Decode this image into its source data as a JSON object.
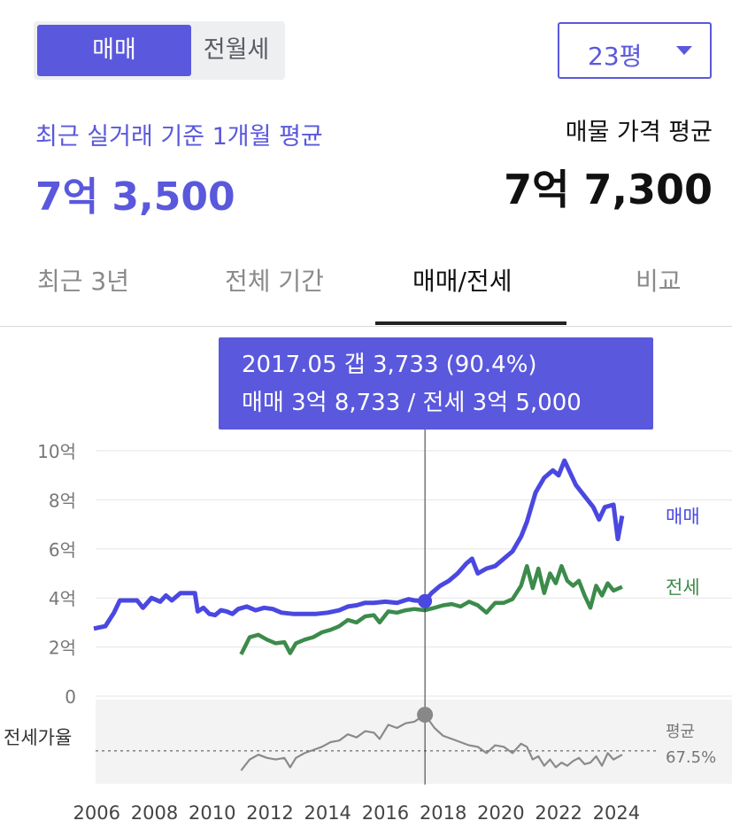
{
  "toggle": {
    "active_label": "매매",
    "inactive_label": "전월세"
  },
  "area_select": {
    "value": "23평"
  },
  "summary": {
    "recent_label": "최근 실거래 기준 1개월 평균",
    "recent_value": "7억 3,500",
    "listing_label": "매물 가격 평균",
    "listing_value": "7억 7,300"
  },
  "tabs": [
    {
      "label": "최근 3년"
    },
    {
      "label": "전체 기간"
    },
    {
      "label": "매매/전세"
    },
    {
      "label": "비교"
    }
  ],
  "colors": {
    "accent": "#5a58dc",
    "sale": "#4a48e0",
    "jeonse": "#3c8b4b",
    "ratio": "#8a8a8a"
  },
  "tooltip": {
    "line1": "2017.05  갭 3,733 (90.4%)",
    "line2": "매매 3억 8,733 / 전세 3억 5,000"
  },
  "chart_data": {
    "type": "line",
    "x_ticks": [
      "2006",
      "2008",
      "2010",
      "2012",
      "2014",
      "2016",
      "2018",
      "2020",
      "2022",
      "2024"
    ],
    "y_ticks": [
      "10억",
      "8억",
      "6억",
      "4억",
      "2억",
      "0"
    ],
    "ylim": [
      0,
      10
    ],
    "xlim": [
      2005.9,
      2025.0
    ],
    "grid": true,
    "cursor_x": 2017.37,
    "series": [
      {
        "name": "매매",
        "color": "#4a48e0",
        "points": [
          [
            2005.9,
            2.75
          ],
          [
            2006.3,
            2.85
          ],
          [
            2006.6,
            3.4
          ],
          [
            2006.8,
            3.9
          ],
          [
            2007.1,
            3.9
          ],
          [
            2007.4,
            3.9
          ],
          [
            2007.6,
            3.6
          ],
          [
            2007.9,
            4.0
          ],
          [
            2008.2,
            3.85
          ],
          [
            2008.4,
            4.1
          ],
          [
            2008.6,
            3.9
          ],
          [
            2008.9,
            4.2
          ],
          [
            2009.1,
            4.2
          ],
          [
            2009.4,
            4.2
          ],
          [
            2009.5,
            3.45
          ],
          [
            2009.7,
            3.6
          ],
          [
            2009.9,
            3.35
          ],
          [
            2010.1,
            3.3
          ],
          [
            2010.3,
            3.5
          ],
          [
            2010.5,
            3.45
          ],
          [
            2010.7,
            3.35
          ],
          [
            2010.9,
            3.55
          ],
          [
            2011.2,
            3.65
          ],
          [
            2011.5,
            3.5
          ],
          [
            2011.8,
            3.6
          ],
          [
            2012.1,
            3.55
          ],
          [
            2012.4,
            3.4
          ],
          [
            2012.8,
            3.35
          ],
          [
            2013.2,
            3.35
          ],
          [
            2013.6,
            3.35
          ],
          [
            2014.0,
            3.4
          ],
          [
            2014.4,
            3.5
          ],
          [
            2014.7,
            3.65
          ],
          [
            2015.0,
            3.7
          ],
          [
            2015.3,
            3.8
          ],
          [
            2015.6,
            3.8
          ],
          [
            2016.0,
            3.85
          ],
          [
            2016.4,
            3.8
          ],
          [
            2016.8,
            3.95
          ],
          [
            2017.0,
            3.9
          ],
          [
            2017.37,
            3.87
          ],
          [
            2017.6,
            4.2
          ],
          [
            2017.9,
            4.5
          ],
          [
            2018.2,
            4.7
          ],
          [
            2018.5,
            5.0
          ],
          [
            2018.8,
            5.4
          ],
          [
            2019.0,
            5.6
          ],
          [
            2019.2,
            5.0
          ],
          [
            2019.5,
            5.2
          ],
          [
            2019.8,
            5.3
          ],
          [
            2020.1,
            5.6
          ],
          [
            2020.4,
            5.9
          ],
          [
            2020.7,
            6.5
          ],
          [
            2020.9,
            7.1
          ],
          [
            2021.2,
            8.3
          ],
          [
            2021.5,
            8.9
          ],
          [
            2021.8,
            9.2
          ],
          [
            2022.0,
            9.0
          ],
          [
            2022.2,
            9.6
          ],
          [
            2022.4,
            9.1
          ],
          [
            2022.6,
            8.6
          ],
          [
            2022.8,
            8.3
          ],
          [
            2023.0,
            8.0
          ],
          [
            2023.2,
            7.7
          ],
          [
            2023.4,
            7.2
          ],
          [
            2023.6,
            7.7
          ],
          [
            2023.9,
            7.8
          ],
          [
            2024.05,
            6.4
          ],
          [
            2024.2,
            7.35
          ]
        ]
      },
      {
        "name": "전세",
        "color": "#3c8b4b",
        "points": [
          [
            2011.0,
            1.7
          ],
          [
            2011.3,
            2.4
          ],
          [
            2011.6,
            2.5
          ],
          [
            2011.9,
            2.3
          ],
          [
            2012.2,
            2.15
          ],
          [
            2012.5,
            2.2
          ],
          [
            2012.7,
            1.75
          ],
          [
            2012.9,
            2.15
          ],
          [
            2013.2,
            2.3
          ],
          [
            2013.5,
            2.4
          ],
          [
            2013.8,
            2.6
          ],
          [
            2014.1,
            2.7
          ],
          [
            2014.4,
            2.85
          ],
          [
            2014.7,
            3.1
          ],
          [
            2015.0,
            3.0
          ],
          [
            2015.3,
            3.25
          ],
          [
            2015.6,
            3.3
          ],
          [
            2015.8,
            3.0
          ],
          [
            2016.1,
            3.45
          ],
          [
            2016.4,
            3.4
          ],
          [
            2016.7,
            3.5
          ],
          [
            2017.0,
            3.55
          ],
          [
            2017.37,
            3.5
          ],
          [
            2017.7,
            3.6
          ],
          [
            2018.0,
            3.7
          ],
          [
            2018.3,
            3.75
          ],
          [
            2018.6,
            3.65
          ],
          [
            2018.9,
            3.85
          ],
          [
            2019.2,
            3.7
          ],
          [
            2019.5,
            3.4
          ],
          [
            2019.8,
            3.8
          ],
          [
            2020.1,
            3.8
          ],
          [
            2020.4,
            3.95
          ],
          [
            2020.7,
            4.5
          ],
          [
            2020.9,
            5.3
          ],
          [
            2021.1,
            4.4
          ],
          [
            2021.3,
            5.2
          ],
          [
            2021.5,
            4.2
          ],
          [
            2021.7,
            5.0
          ],
          [
            2021.9,
            4.6
          ],
          [
            2022.1,
            5.3
          ],
          [
            2022.3,
            4.7
          ],
          [
            2022.5,
            4.5
          ],
          [
            2022.7,
            4.7
          ],
          [
            2022.9,
            4.1
          ],
          [
            2023.1,
            3.6
          ],
          [
            2023.3,
            4.5
          ],
          [
            2023.5,
            4.1
          ],
          [
            2023.7,
            4.6
          ],
          [
            2023.9,
            4.3
          ],
          [
            2024.2,
            4.45
          ]
        ]
      },
      {
        "name": "전세가율",
        "color": "#8a8a8a",
        "ylim": [
          55,
          100
        ],
        "points": [
          [
            2011.0,
            55
          ],
          [
            2011.3,
            62
          ],
          [
            2011.6,
            65
          ],
          [
            2011.9,
            63
          ],
          [
            2012.2,
            62
          ],
          [
            2012.5,
            63
          ],
          [
            2012.7,
            57
          ],
          [
            2012.9,
            63
          ],
          [
            2013.2,
            66
          ],
          [
            2013.5,
            68
          ],
          [
            2013.8,
            70
          ],
          [
            2014.1,
            73
          ],
          [
            2014.4,
            74
          ],
          [
            2014.7,
            78
          ],
          [
            2015.0,
            76
          ],
          [
            2015.3,
            80
          ],
          [
            2015.6,
            79
          ],
          [
            2015.8,
            75
          ],
          [
            2016.1,
            84
          ],
          [
            2016.4,
            82
          ],
          [
            2016.7,
            85
          ],
          [
            2017.0,
            86
          ],
          [
            2017.37,
            90.4
          ],
          [
            2017.7,
            82
          ],
          [
            2018.0,
            77
          ],
          [
            2018.3,
            75
          ],
          [
            2018.6,
            73
          ],
          [
            2018.9,
            71
          ],
          [
            2019.2,
            70
          ],
          [
            2019.5,
            66
          ],
          [
            2019.8,
            71
          ],
          [
            2020.1,
            70
          ],
          [
            2020.4,
            66
          ],
          [
            2020.7,
            72
          ],
          [
            2020.9,
            70
          ],
          [
            2021.1,
            62
          ],
          [
            2021.3,
            64
          ],
          [
            2021.5,
            58
          ],
          [
            2021.7,
            62
          ],
          [
            2021.9,
            57
          ],
          [
            2022.1,
            60
          ],
          [
            2022.3,
            58
          ],
          [
            2022.5,
            61
          ],
          [
            2022.7,
            63
          ],
          [
            2022.9,
            59
          ],
          [
            2023.1,
            60
          ],
          [
            2023.3,
            64
          ],
          [
            2023.5,
            58
          ],
          [
            2023.7,
            66
          ],
          [
            2023.9,
            62
          ],
          [
            2024.2,
            65
          ]
        ]
      }
    ],
    "ratio_avg_label": "평균",
    "ratio_avg_value": "67.5%",
    "ratio_label": "전세가율"
  }
}
